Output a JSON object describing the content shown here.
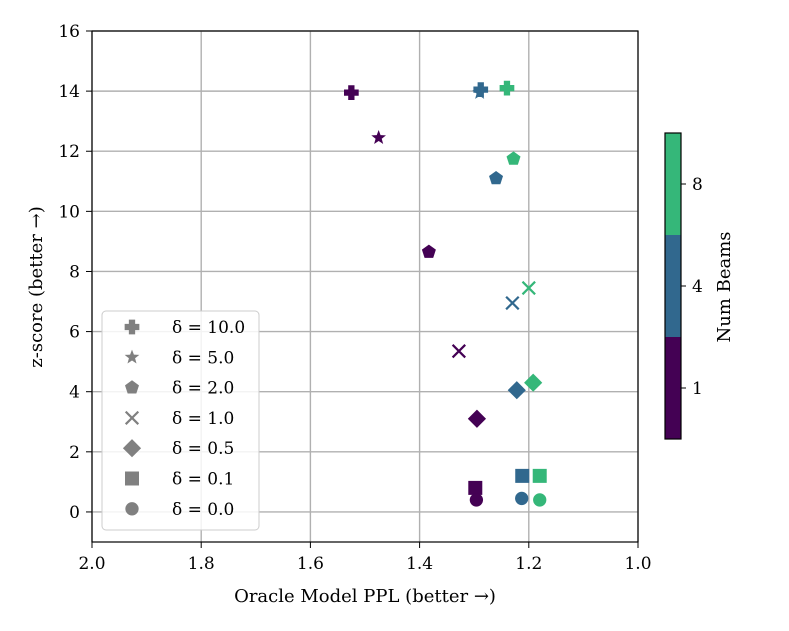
{
  "chart_data": {
    "type": "scatter",
    "title": "",
    "xlabel": "Oracle Model PPL (better →)",
    "ylabel": "z-score (better →)",
    "xlim": [
      2.0,
      1.0
    ],
    "ylim": [
      -1,
      16
    ],
    "x_inverted": true,
    "grid": true,
    "xticks": [
      "2.0",
      "1.8",
      "1.6",
      "1.4",
      "1.2",
      "1.0"
    ],
    "yticks": [
      "0",
      "2",
      "4",
      "6",
      "8",
      "10",
      "12",
      "14",
      "16"
    ],
    "legend_position": "lower-left",
    "legend": [
      {
        "marker": "plus",
        "label": "δ = 10.0"
      },
      {
        "marker": "star",
        "label": "δ = 5.0"
      },
      {
        "marker": "pentagon",
        "label": "δ = 2.0"
      },
      {
        "marker": "x",
        "label": "δ = 1.0"
      },
      {
        "marker": "diamond",
        "label": "δ = 0.5"
      },
      {
        "marker": "square",
        "label": "δ = 0.1"
      },
      {
        "marker": "circle",
        "label": "δ = 0.0"
      }
    ],
    "colorbar": {
      "label": "Num Beams",
      "ticks": [
        "1",
        "4",
        "8"
      ],
      "colors": {
        "1": "#440154",
        "4": "#31688e",
        "8": "#35b779"
      }
    },
    "series": [
      {
        "delta": 10.0,
        "marker": "plus",
        "points": [
          {
            "beams": 1,
            "x": 1.525,
            "y": 13.95
          },
          {
            "beams": 4,
            "x": 1.288,
            "y": 14.05
          },
          {
            "beams": 8,
            "x": 1.24,
            "y": 14.1
          }
        ]
      },
      {
        "delta": 5.0,
        "marker": "star",
        "points": [
          {
            "beams": 1,
            "x": 1.475,
            "y": 12.45
          },
          {
            "beams": 4,
            "x": 1.29,
            "y": 13.95
          }
        ]
      },
      {
        "delta": 2.0,
        "marker": "pentagon",
        "points": [
          {
            "beams": 1,
            "x": 1.383,
            "y": 8.65
          },
          {
            "beams": 4,
            "x": 1.26,
            "y": 11.1
          },
          {
            "beams": 8,
            "x": 1.228,
            "y": 11.75
          }
        ]
      },
      {
        "delta": 1.0,
        "marker": "x",
        "points": [
          {
            "beams": 1,
            "x": 1.328,
            "y": 5.35
          },
          {
            "beams": 4,
            "x": 1.23,
            "y": 6.95
          },
          {
            "beams": 8,
            "x": 1.2,
            "y": 7.45
          }
        ]
      },
      {
        "delta": 0.5,
        "marker": "diamond",
        "points": [
          {
            "beams": 1,
            "x": 1.295,
            "y": 3.1
          },
          {
            "beams": 4,
            "x": 1.222,
            "y": 4.05
          },
          {
            "beams": 8,
            "x": 1.192,
            "y": 4.3
          }
        ]
      },
      {
        "delta": 0.1,
        "marker": "square",
        "points": [
          {
            "beams": 1,
            "x": 1.298,
            "y": 0.8
          },
          {
            "beams": 4,
            "x": 1.212,
            "y": 1.2
          },
          {
            "beams": 8,
            "x": 1.18,
            "y": 1.2
          }
        ]
      },
      {
        "delta": 0.0,
        "marker": "circle",
        "points": [
          {
            "beams": 1,
            "x": 1.296,
            "y": 0.4
          },
          {
            "beams": 4,
            "x": 1.213,
            "y": 0.45
          },
          {
            "beams": 8,
            "x": 1.18,
            "y": 0.4
          }
        ]
      }
    ]
  }
}
